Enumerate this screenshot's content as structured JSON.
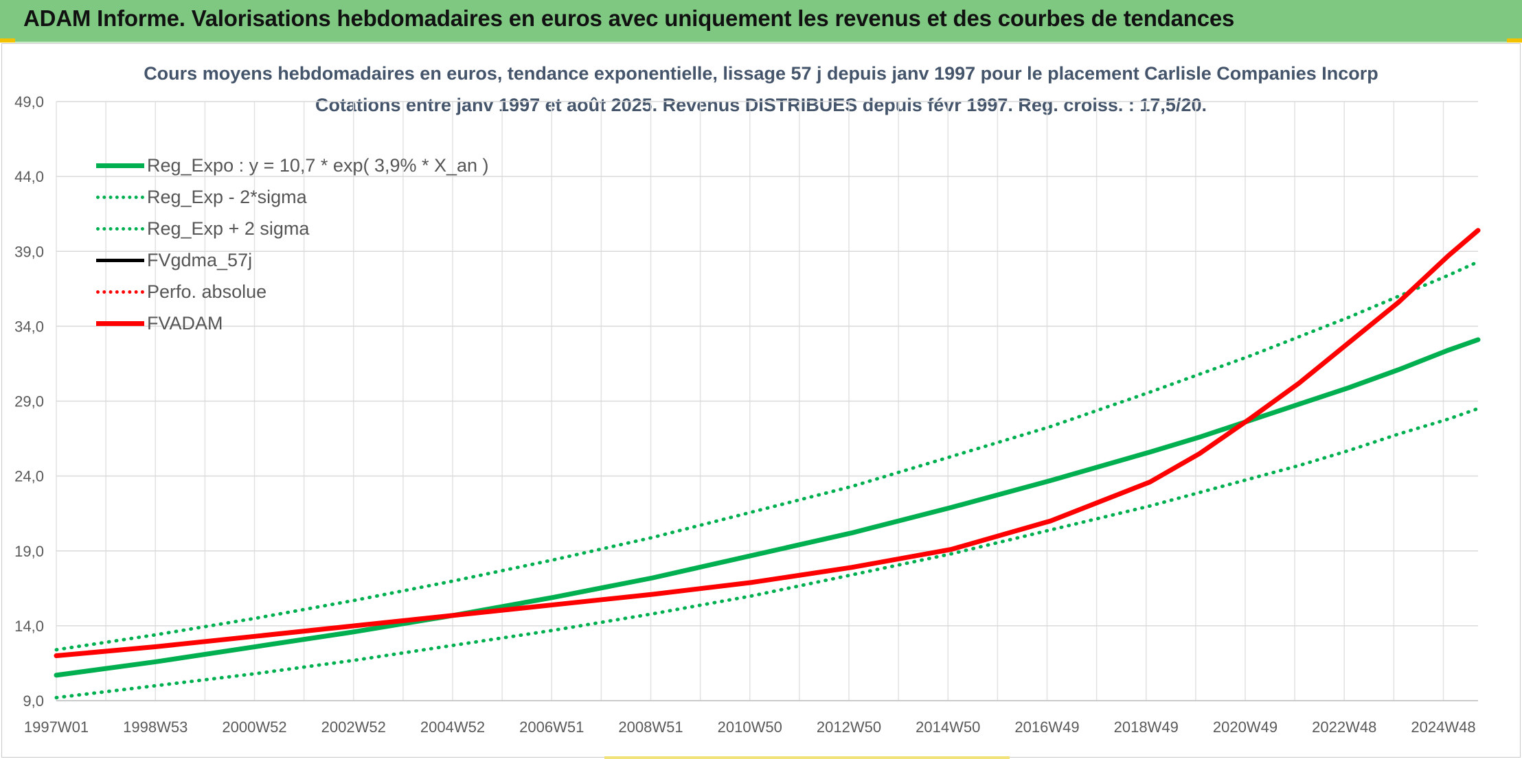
{
  "header": {
    "banner_title": "ADAM Informe. Valorisations hebdomadaires en euros avec uniquement les revenus et des courbes de tendances"
  },
  "colors": {
    "banner": "#7ec882",
    "green": "#00b050",
    "red": "#ff0000",
    "black": "#000000",
    "title": "#44546a"
  },
  "chart_data": {
    "type": "line",
    "title": "Cours moyens hebdomadaires en euros, tendance exponentielle, lissage 57 j depuis janv 1997 pour le placement Carlisle Companies Incorp",
    "subtitle": "Cotations entre janv 1997 et août 2025. Revenus DISTRIBUES depuis févr 1997. Reg. croiss. : 17,5/20.",
    "xlabel": "",
    "ylabel": "",
    "grid": true,
    "legend_position": "top-left",
    "ylim": [
      9,
      49
    ],
    "xlim": [
      1997.0,
      2025.6
    ],
    "y_ticks": [
      "9,0",
      "14,0",
      "19,0",
      "24,0",
      "29,0",
      "34,0",
      "39,0",
      "44,0",
      "49,0"
    ],
    "x_tick_labels": [
      "1997W01",
      "1998W53",
      "2000W52",
      "2002W52",
      "2004W52",
      "2006W51",
      "2008W51",
      "2010W50",
      "2012W50",
      "2014W50",
      "2016W49",
      "2018W49",
      "2020W49",
      "2022W48",
      "2024W48"
    ],
    "x": [
      1997.0,
      1999.0,
      2001.0,
      2003.0,
      2005.0,
      2007.0,
      2009.0,
      2011.0,
      2013.0,
      2015.0,
      2017.0,
      2019.0,
      2020.0,
      2021.0,
      2022.0,
      2023.0,
      2024.0,
      2025.0,
      2025.6
    ],
    "series": [
      {
        "name": "Reg_Expo : y = 10,7 * exp( 3,9% *  X_an )",
        "style": "solid-thick",
        "color": "#00b050",
        "values": [
          10.7,
          11.6,
          12.6,
          13.6,
          14.7,
          15.9,
          17.2,
          18.7,
          20.2,
          21.9,
          23.7,
          25.6,
          26.6,
          27.7,
          28.8,
          29.9,
          31.1,
          32.4,
          33.1
        ]
      },
      {
        "name": "Reg_Exp - 2*sigma",
        "style": "dotted",
        "color": "#00b050",
        "values": [
          9.2,
          10.0,
          10.8,
          11.7,
          12.7,
          13.7,
          14.8,
          16.0,
          17.4,
          18.8,
          20.4,
          22.0,
          22.9,
          23.8,
          24.7,
          25.7,
          26.8,
          27.8,
          28.5
        ]
      },
      {
        "name": "Reg_Exp + 2 sigma",
        "style": "dotted",
        "color": "#00b050",
        "values": [
          12.4,
          13.4,
          14.5,
          15.7,
          17.0,
          18.4,
          19.9,
          21.6,
          23.3,
          25.3,
          27.3,
          29.6,
          30.8,
          32.0,
          33.3,
          34.6,
          36.0,
          37.4,
          38.3
        ]
      },
      {
        "name": "FVgdma_57j",
        "style": "solid",
        "color": "#000000",
        "values": [
          12.0,
          12.6,
          13.3,
          14.0,
          14.7,
          15.4,
          16.1,
          16.9,
          17.9,
          19.1,
          21.0,
          23.6,
          25.5,
          27.8,
          30.2,
          32.9,
          35.6,
          38.7,
          40.4
        ]
      },
      {
        "name": "Perfo. absolue",
        "style": "dotted",
        "color": "#ff0000",
        "values": [
          12.0,
          12.6,
          13.3,
          14.0,
          14.7,
          15.4,
          16.1,
          16.9,
          17.9,
          19.1,
          21.0,
          23.6,
          25.5,
          27.8,
          30.2,
          32.9,
          35.6,
          38.7,
          40.4
        ]
      },
      {
        "name": "FVADAM",
        "style": "solid-thick",
        "color": "#ff0000",
        "values": [
          12.0,
          12.6,
          13.3,
          14.0,
          14.7,
          15.4,
          16.1,
          16.9,
          17.9,
          19.1,
          21.0,
          23.6,
          25.5,
          27.8,
          30.2,
          32.9,
          35.6,
          38.7,
          40.4
        ]
      }
    ]
  }
}
